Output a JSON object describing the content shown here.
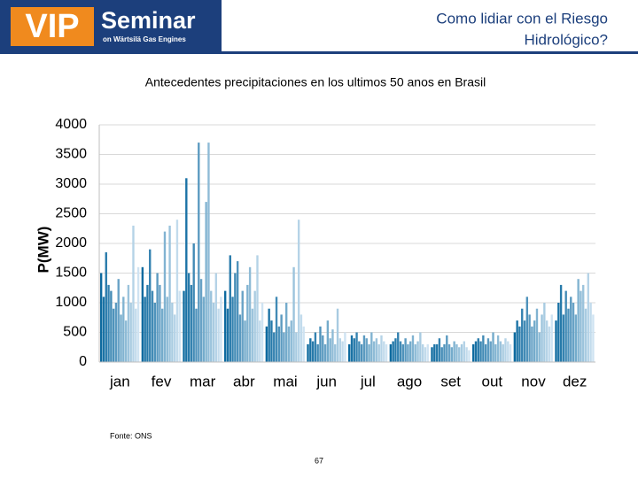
{
  "header": {
    "logo_vip": "VIP",
    "logo_seminar": "Seminar",
    "logo_sub": "on Wärtsilä Gas Engines",
    "title": [
      "Como lidiar con el Riesgo",
      "Hidrológico?"
    ]
  },
  "chart_data": {
    "type": "bar",
    "title": "Antecedentes precipitaciones en los ultimos 50 anos en Brasil",
    "y_label": "P(MW)",
    "categories": [
      "jan",
      "fev",
      "mar",
      "abr",
      "mai",
      "jun",
      "jul",
      "ago",
      "set",
      "out",
      "nov",
      "dez"
    ],
    "values": [
      [
        1500,
        1100,
        1850,
        1300,
        1200,
        900,
        1000,
        1400,
        800,
        1100,
        700,
        1300,
        1000,
        2300,
        900,
        1600
      ],
      [
        1600,
        1100,
        1300,
        1900,
        1200,
        1000,
        1500,
        1300,
        900,
        2200,
        1100,
        2300,
        1000,
        800,
        2400,
        1200
      ],
      [
        1200,
        3100,
        1500,
        1300,
        2000,
        900,
        3700,
        1400,
        1100,
        2700,
        3700,
        1200,
        1000,
        1500,
        900,
        1100
      ],
      [
        1200,
        900,
        1800,
        1100,
        1500,
        1700,
        800,
        1200,
        700,
        1300,
        1600,
        900,
        1200,
        1800,
        700,
        1000
      ],
      [
        600,
        900,
        700,
        500,
        1100,
        600,
        800,
        500,
        1000,
        600,
        700,
        1600,
        500,
        2400,
        800,
        600
      ],
      [
        300,
        400,
        350,
        500,
        300,
        600,
        450,
        300,
        700,
        400,
        550,
        300,
        900,
        400,
        350,
        500
      ],
      [
        300,
        450,
        400,
        500,
        350,
        300,
        450,
        400,
        300,
        500,
        350,
        400,
        300,
        450,
        350,
        300
      ],
      [
        300,
        350,
        400,
        500,
        350,
        300,
        400,
        300,
        350,
        450,
        300,
        350,
        500,
        300,
        250,
        300
      ],
      [
        250,
        300,
        300,
        400,
        250,
        300,
        450,
        300,
        250,
        350,
        300,
        250,
        300,
        350,
        250,
        200
      ],
      [
        300,
        350,
        400,
        350,
        450,
        300,
        400,
        350,
        500,
        300,
        450,
        350,
        300,
        400,
        350,
        300
      ],
      [
        500,
        700,
        600,
        900,
        700,
        1100,
        800,
        600,
        700,
        900,
        500,
        800,
        1000,
        700,
        600,
        800
      ],
      [
        700,
        1000,
        1300,
        800,
        1200,
        900,
        1100,
        1000,
        800,
        1400,
        1200,
        1300,
        900,
        1500,
        1000,
        800
      ]
    ],
    "colors": [
      "#0d6a9f",
      "#cfe3f2"
    ],
    "ylim": [
      0,
      4000
    ],
    "yticks": [
      0,
      500,
      1000,
      1500,
      2000,
      2500,
      3000,
      3500,
      4000
    ],
    "grid": true
  },
  "source": "Fonte: ONS",
  "page_number": "67"
}
